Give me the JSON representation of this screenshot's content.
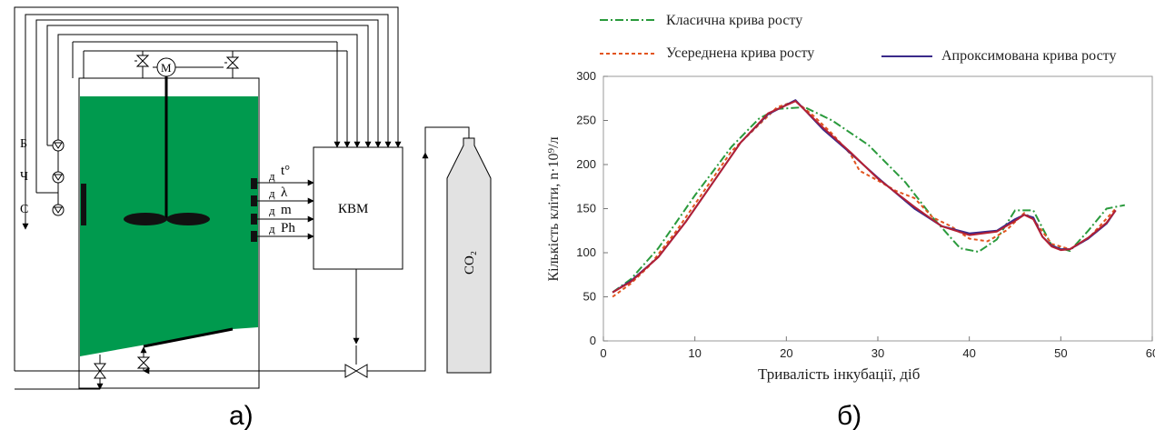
{
  "panel_a": {
    "label": "а)",
    "controller_label": "КВМ",
    "gas_label": "CO₂",
    "motor_label": "M",
    "input_labels": [
      "Б",
      "Ч",
      "С"
    ],
    "sensors": [
      {
        "prefix": "д",
        "symbol": "t°"
      },
      {
        "prefix": "д",
        "symbol": "λ"
      },
      {
        "prefix": "д",
        "symbol": "m"
      },
      {
        "prefix": "д",
        "symbol": "Ph"
      }
    ],
    "colors": {
      "liquid": "#009a4e",
      "cylinder": "#e2e2e2"
    }
  },
  "panel_b": {
    "label": "б)"
  },
  "chart_data": {
    "type": "line",
    "title": "",
    "xlabel": "Тривалість інкубації, діб",
    "ylabel": "Кількість кліти, n·10⁹/л",
    "xlim": [
      0,
      60
    ],
    "ylim": [
      0,
      300
    ],
    "x_ticks": [
      0,
      10,
      20,
      30,
      40,
      50,
      60
    ],
    "y_ticks": [
      0,
      50,
      100,
      150,
      200,
      250,
      300
    ],
    "grid": false,
    "legend_placement": "top",
    "series": [
      {
        "name": "Класична крива росту",
        "color": "#2a9a3c",
        "style": "dashdot",
        "points": [
          [
            1,
            55
          ],
          [
            3,
            70
          ],
          [
            6,
            105
          ],
          [
            10,
            165
          ],
          [
            14,
            220
          ],
          [
            17,
            252
          ],
          [
            19,
            263
          ],
          [
            22,
            265
          ],
          [
            25,
            250
          ],
          [
            29,
            222
          ],
          [
            33,
            180
          ],
          [
            36,
            140
          ],
          [
            39,
            105
          ],
          [
            41,
            101
          ],
          [
            43,
            115
          ],
          [
            45,
            148
          ],
          [
            47,
            148
          ],
          [
            49,
            108
          ],
          [
            51,
            102
          ],
          [
            53,
            125
          ],
          [
            55,
            150
          ],
          [
            57,
            154
          ]
        ]
      },
      {
        "name": "Усереднена крива росту",
        "color": "#e2541e",
        "style": "dashed",
        "points": [
          [
            1,
            50
          ],
          [
            3,
            65
          ],
          [
            5,
            85
          ],
          [
            8,
            125
          ],
          [
            11,
            170
          ],
          [
            14,
            215
          ],
          [
            17,
            245
          ],
          [
            19,
            265
          ],
          [
            21,
            272
          ],
          [
            23,
            255
          ],
          [
            25,
            235
          ],
          [
            27,
            212
          ],
          [
            28,
            193
          ],
          [
            30,
            182
          ],
          [
            32,
            170
          ],
          [
            34,
            162
          ],
          [
            36,
            140
          ],
          [
            38,
            130
          ],
          [
            40,
            116
          ],
          [
            42,
            113
          ],
          [
            44,
            125
          ],
          [
            46,
            145
          ],
          [
            47,
            138
          ],
          [
            49,
            110
          ],
          [
            51,
            104
          ],
          [
            53,
            116
          ],
          [
            56,
            150
          ]
        ]
      },
      {
        "name": "Апроксимована крива росту",
        "color": "#3a2a8a",
        "style": "solid",
        "points": [
          [
            1,
            55
          ],
          [
            3,
            68
          ],
          [
            6,
            95
          ],
          [
            9,
            135
          ],
          [
            12,
            180
          ],
          [
            15,
            225
          ],
          [
            18,
            257
          ],
          [
            21,
            273
          ],
          [
            24,
            240
          ],
          [
            27,
            213
          ],
          [
            30,
            185
          ],
          [
            34,
            150
          ],
          [
            37,
            130
          ],
          [
            40,
            122
          ],
          [
            43,
            125
          ],
          [
            45,
            138
          ],
          [
            46,
            143
          ],
          [
            47,
            140
          ],
          [
            48,
            118
          ],
          [
            49,
            108
          ],
          [
            50,
            104
          ],
          [
            51,
            104
          ],
          [
            53,
            116
          ],
          [
            55,
            133
          ],
          [
            56,
            148
          ]
        ]
      },
      {
        "name": "",
        "color": "#b32034",
        "style": "solid",
        "points": [
          [
            1,
            55
          ],
          [
            3,
            67
          ],
          [
            6,
            95
          ],
          [
            9,
            135
          ],
          [
            12,
            180
          ],
          [
            15,
            225
          ],
          [
            18,
            258
          ],
          [
            21,
            272
          ],
          [
            24,
            242
          ],
          [
            27,
            214
          ],
          [
            30,
            184
          ],
          [
            34,
            152
          ],
          [
            37,
            130
          ],
          [
            40,
            120
          ],
          [
            43,
            124
          ],
          [
            45,
            136
          ],
          [
            46,
            143
          ],
          [
            47,
            138
          ],
          [
            48,
            118
          ],
          [
            49,
            107
          ],
          [
            50,
            103
          ],
          [
            51,
            104
          ],
          [
            53,
            117
          ],
          [
            55,
            134
          ],
          [
            56,
            148
          ]
        ]
      }
    ]
  }
}
